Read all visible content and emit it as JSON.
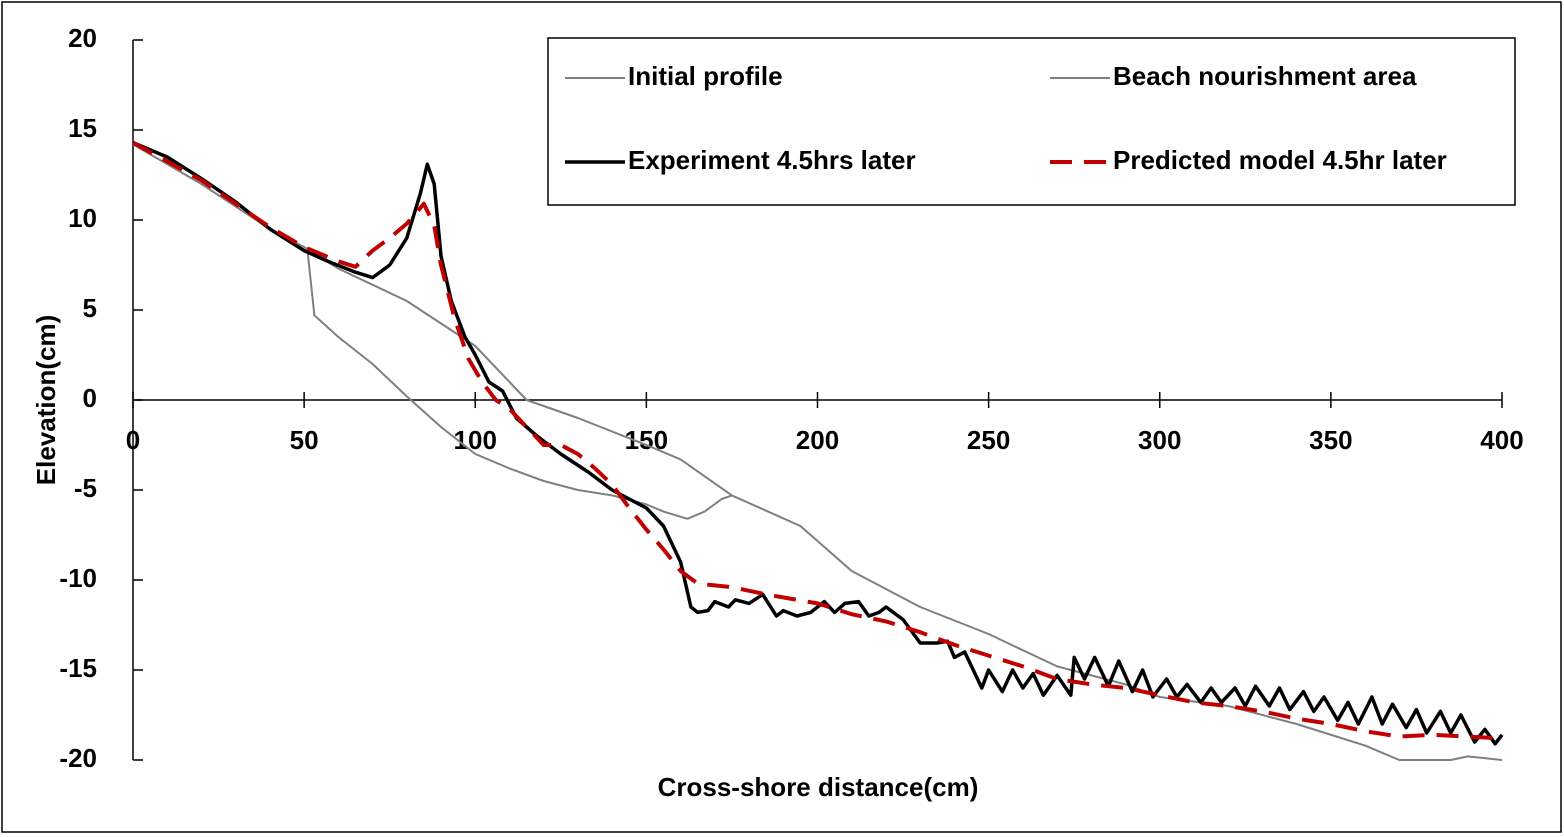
{
  "chart_data": {
    "type": "line",
    "x_label": "Cross-shore distance(cm)",
    "y_label": "Elevation(cm)",
    "xlim": [
      0,
      400
    ],
    "xticks": [
      0,
      50,
      100,
      150,
      200,
      250,
      300,
      350,
      400
    ],
    "ylim": [
      -20,
      20
    ],
    "yticks": [
      -20,
      -15,
      -10,
      -5,
      0,
      5,
      10,
      15,
      20
    ],
    "legend_position": "top-right",
    "series": [
      {
        "name": "Initial profile",
        "color": "#7f7f7f",
        "width": 2,
        "dash": false,
        "x": [
          0,
          20,
          40,
          50,
          60,
          80,
          100,
          115,
          130,
          150,
          160,
          175,
          195,
          210,
          230,
          250,
          270,
          290,
          300,
          320,
          340,
          360,
          370,
          385,
          390,
          400
        ],
        "values": [
          14.2,
          12,
          9.5,
          8.5,
          7.3,
          5.5,
          3,
          0,
          -1,
          -2.5,
          -3.3,
          -5.3,
          -7,
          -9.5,
          -11.5,
          -13,
          -14.8,
          -15.8,
          -16.5,
          -17,
          -18,
          -19.2,
          -20,
          -20,
          -19.8,
          -20
        ]
      },
      {
        "name": "Beach nourishment area",
        "color": "#7f7f7f",
        "width": 2,
        "dash": false,
        "x": [
          51,
          53,
          60,
          70,
          80,
          90,
          100,
          110,
          120,
          130,
          140,
          150,
          155,
          162,
          167,
          172,
          175
        ],
        "values": [
          8.3,
          4.7,
          3.5,
          2,
          0.2,
          -1.5,
          -3,
          -3.8,
          -4.5,
          -5,
          -5.3,
          -5.8,
          -6.2,
          -6.6,
          -6.2,
          -5.5,
          -5.3
        ]
      },
      {
        "name": "Experiment 4.5hrs later",
        "color": "#000000",
        "width": 3.5,
        "dash": false,
        "x": [
          0,
          10,
          20,
          30,
          40,
          50,
          57,
          65,
          70,
          75,
          80,
          84,
          86,
          88,
          90,
          93,
          97,
          100,
          104,
          108,
          112,
          118,
          125,
          133,
          140,
          150,
          155,
          160,
          163,
          165,
          168,
          170,
          174,
          176,
          180,
          184,
          188,
          190,
          194,
          198,
          202,
          205,
          208,
          212,
          215,
          218,
          220,
          225,
          230,
          235,
          238,
          240,
          243,
          248,
          250,
          254,
          257,
          260,
          263,
          266,
          270,
          274,
          275,
          278,
          281,
          285,
          288,
          292,
          295,
          298,
          302,
          305,
          308,
          312,
          315,
          318,
          322,
          325,
          328,
          332,
          335,
          338,
          342,
          345,
          348,
          352,
          355,
          358,
          362,
          365,
          368,
          372,
          375,
          378,
          382,
          385,
          388,
          392,
          395,
          398,
          400
        ],
        "values": [
          14.3,
          13.5,
          12.3,
          11,
          9.5,
          8.3,
          7.7,
          7.1,
          6.8,
          7.5,
          9,
          11.5,
          13.1,
          12,
          8,
          5.5,
          3.5,
          2.5,
          1,
          0.5,
          -1,
          -2,
          -3,
          -4,
          -5,
          -6,
          -7,
          -9,
          -11.5,
          -11.8,
          -11.7,
          -11.2,
          -11.5,
          -11.1,
          -11.3,
          -10.8,
          -12,
          -11.7,
          -12,
          -11.8,
          -11.2,
          -11.8,
          -11.3,
          -11.2,
          -12,
          -11.8,
          -11.5,
          -12.2,
          -13.5,
          -13.5,
          -13.4,
          -14.3,
          -14,
          -16,
          -15,
          -16.2,
          -15,
          -16,
          -15.2,
          -16.4,
          -15.3,
          -16.4,
          -14.3,
          -15.5,
          -14.3,
          -15.9,
          -14.5,
          -16.2,
          -15,
          -16.5,
          -15.5,
          -16.5,
          -15.8,
          -16.8,
          -16,
          -16.8,
          -16,
          -17,
          -15.9,
          -17,
          -16,
          -17.2,
          -16.2,
          -17.3,
          -16.5,
          -17.8,
          -16.8,
          -18,
          -16.5,
          -18,
          -16.9,
          -18.2,
          -17.2,
          -18.5,
          -17.3,
          -18.5,
          -17.5,
          -19,
          -18.3,
          -19.1,
          -18.6
        ]
      },
      {
        "name": "Predicted model 4.5hr later",
        "color": "#c00000",
        "width": 4,
        "dash": true,
        "x": [
          0,
          20,
          40,
          50,
          60,
          65,
          70,
          75,
          80,
          85,
          88,
          90,
          94,
          98,
          102,
          106,
          110,
          115,
          120,
          125,
          130,
          135,
          140,
          145,
          150,
          155,
          160,
          165,
          175,
          185,
          200,
          210,
          220,
          230,
          240,
          250,
          260,
          270,
          280,
          290,
          300,
          310,
          320,
          330,
          340,
          350,
          360,
          370,
          380,
          390,
          400
        ],
        "values": [
          14.3,
          12.2,
          9.6,
          8.5,
          7.7,
          7.4,
          8.3,
          9,
          9.8,
          10.9,
          9.7,
          7.5,
          4.5,
          2.3,
          1,
          0,
          -0.5,
          -1.5,
          -2.5,
          -2.5,
          -3,
          -3.8,
          -4.7,
          -6,
          -7.2,
          -8.3,
          -9.5,
          -10.2,
          -10.4,
          -10.8,
          -11.3,
          -11.9,
          -12.3,
          -12.9,
          -13.6,
          -14.2,
          -14.8,
          -15.5,
          -15.8,
          -16,
          -16.4,
          -16.8,
          -17,
          -17.3,
          -17.7,
          -18,
          -18.4,
          -18.7,
          -18.6,
          -18.7,
          -18.8
        ]
      }
    ]
  }
}
